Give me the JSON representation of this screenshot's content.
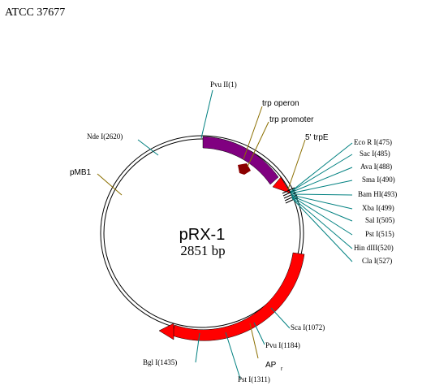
{
  "title": "ATCC 37677",
  "plasmid": {
    "name": "pRX-1",
    "size_label": "2851 bp"
  },
  "features": {
    "trp_operon": "trp operon",
    "trp_promoter": "trp promoter",
    "trpE": "5' trpE",
    "pMB1": "pMB1",
    "AP": "AP",
    "AP_sub": "r"
  },
  "sites": {
    "pvu2": "Pvu  II(1)",
    "nde": "Nde  I(2620)",
    "eco": "Eco  R I(475)",
    "sac": "Sac  I(485)",
    "ava": "Ava  I(488)",
    "sma": "Sma  I(490)",
    "bam": "Bam  HI(493)",
    "xba": "Xba  I(499)",
    "sal": "Sal  I(505)",
    "pst_mcs": "Pst  I(515)",
    "hind": "Hin dIII(520)",
    "cla": "Cla  I(527)",
    "sca": "Sca  I(1072)",
    "pvu1": "Pvu  I(1184)",
    "pst": "Pst  I(1311)",
    "bgl": "Bgl  I(1435)"
  },
  "colors": {
    "trp_arc": "#800080",
    "amp_arc": "#ff0000",
    "promoter_arrow": "#8b0000",
    "site_line": "#008080",
    "feature_line": "#8b6f00",
    "backbone": "#000000"
  }
}
